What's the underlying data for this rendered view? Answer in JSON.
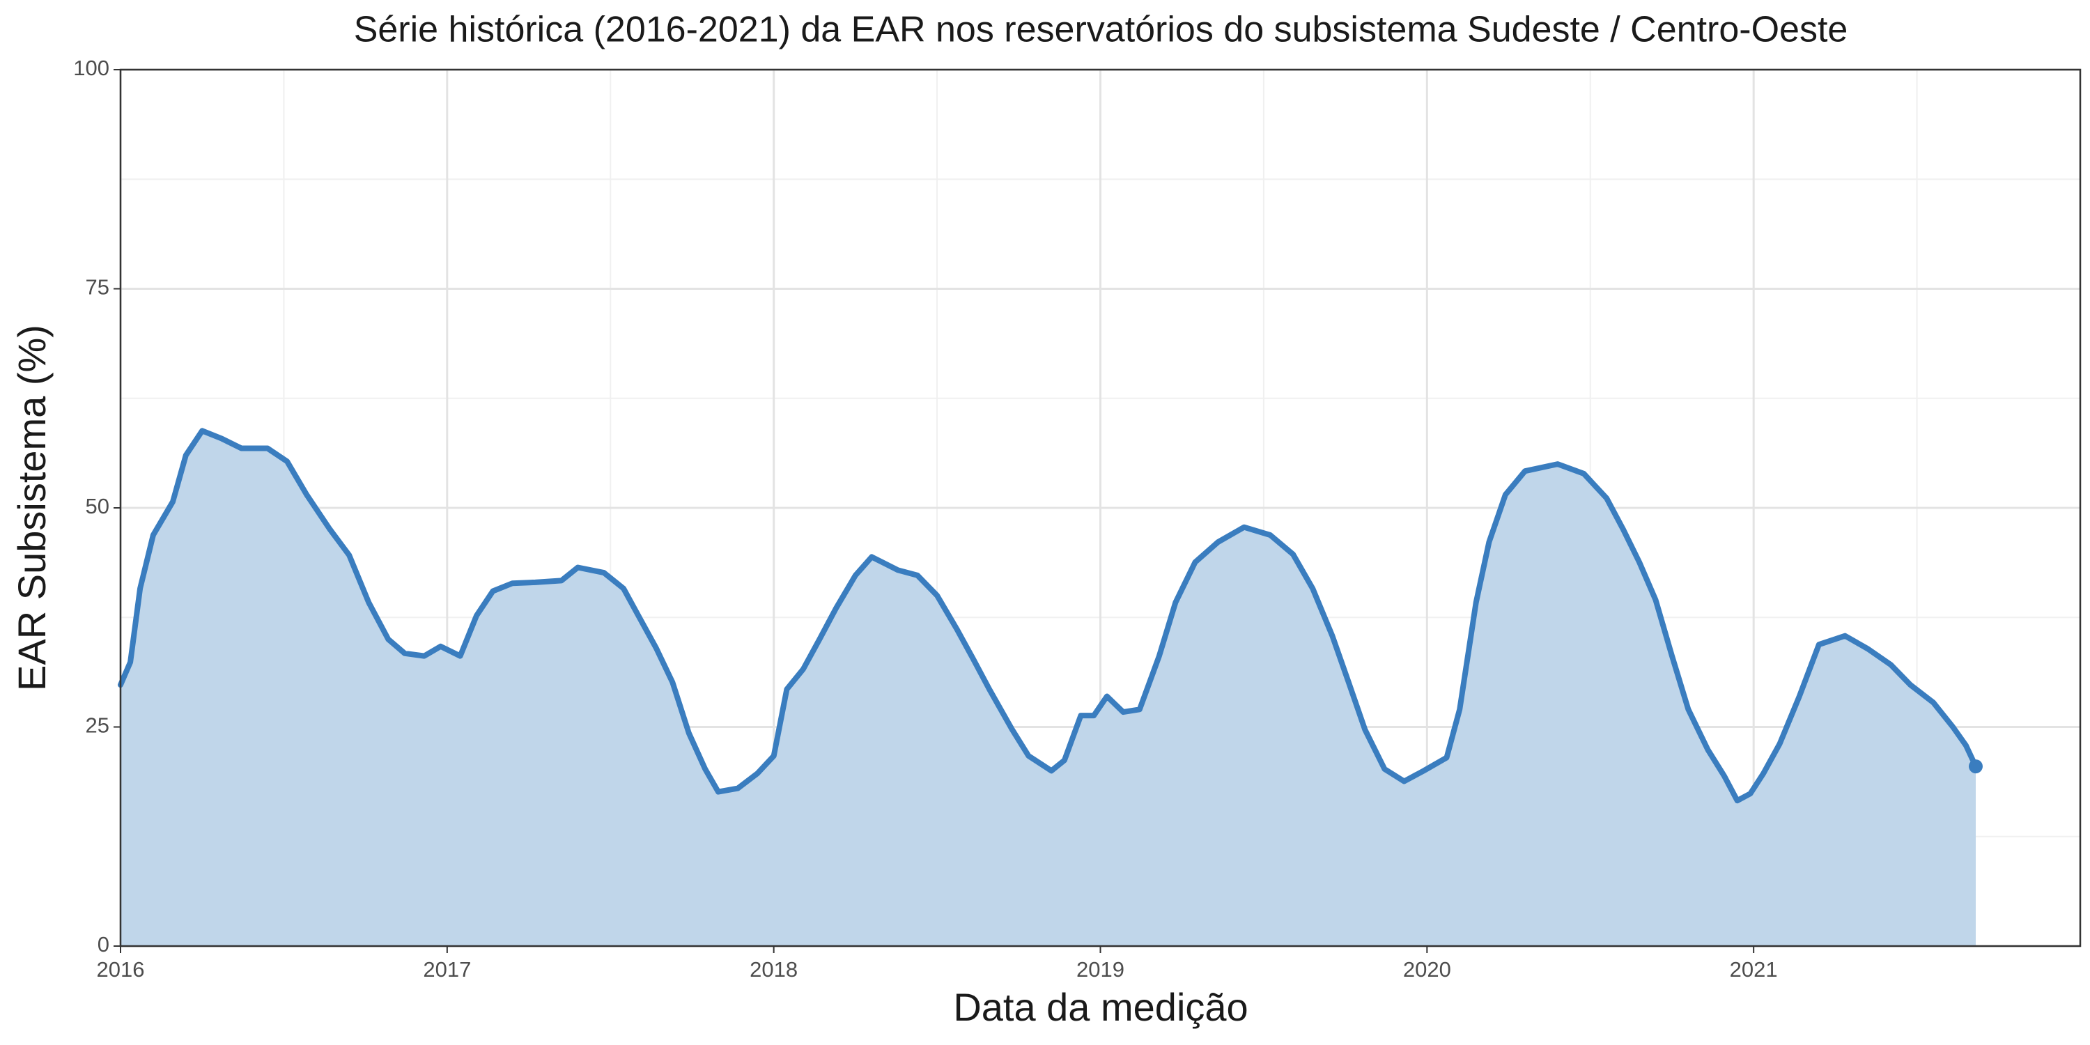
{
  "chart_data": {
    "type": "area",
    "title": "Série histórica (2016-2021) da EAR nos reservatórios do subsistema Sudeste / Centro-Oeste",
    "x_label": "Data da medição",
    "y_label": "EAR Subsistema (%)",
    "x": [
      2016.0,
      2016.03,
      2016.06,
      2016.1,
      2016.16,
      2016.2,
      2016.25,
      2016.31,
      2016.37,
      2016.45,
      2016.51,
      2016.57,
      2016.64,
      2016.7,
      2016.76,
      2016.82,
      2016.87,
      2016.93,
      2016.98,
      2017.04,
      2017.09,
      2017.14,
      2017.2,
      2017.27,
      2017.35,
      2017.4,
      2017.48,
      2017.54,
      2017.59,
      2017.64,
      2017.69,
      2017.74,
      2017.79,
      2017.83,
      2017.89,
      2017.95,
      2018.0,
      2018.04,
      2018.09,
      2018.14,
      2018.19,
      2018.25,
      2018.3,
      2018.38,
      2018.44,
      2018.5,
      2018.56,
      2018.61,
      2018.66,
      2018.73,
      2018.78,
      2018.85,
      2018.89,
      2018.94,
      2018.98,
      2019.02,
      2019.07,
      2019.12,
      2019.18,
      2019.23,
      2019.29,
      2019.36,
      2019.44,
      2019.52,
      2019.59,
      2019.65,
      2019.71,
      2019.76,
      2019.81,
      2019.87,
      2019.93,
      2019.99,
      2020.06,
      2020.1,
      2020.15,
      2020.19,
      2020.24,
      2020.3,
      2020.4,
      2020.48,
      2020.55,
      2020.6,
      2020.65,
      2020.7,
      2020.75,
      2020.8,
      2020.86,
      2020.91,
      2020.95,
      2020.99,
      2021.03,
      2021.08,
      2021.14,
      2021.2,
      2021.28,
      2021.35,
      2021.42,
      2021.48,
      2021.55,
      2021.61,
      2021.65,
      2021.68
    ],
    "values": [
      29.8,
      32.4,
      40.8,
      46.9,
      50.7,
      56.0,
      58.8,
      57.9,
      56.8,
      56.8,
      55.3,
      51.5,
      47.6,
      44.6,
      39.2,
      35.0,
      33.4,
      33.1,
      34.2,
      33.1,
      37.7,
      40.5,
      41.4,
      41.5,
      41.7,
      43.2,
      42.6,
      40.8,
      37.4,
      34.0,
      30.1,
      24.3,
      20.2,
      17.6,
      18.0,
      19.7,
      21.7,
      29.3,
      31.6,
      35.0,
      38.5,
      42.3,
      44.4,
      42.9,
      42.3,
      40.0,
      36.2,
      32.8,
      29.3,
      24.7,
      21.7,
      20.0,
      21.2,
      26.3,
      26.3,
      28.5,
      26.7,
      27.0,
      33.1,
      39.2,
      43.8,
      46.1,
      47.8,
      46.9,
      44.7,
      40.8,
      35.4,
      30.1,
      24.7,
      20.2,
      18.8,
      20.0,
      21.5,
      27.0,
      39.2,
      46.1,
      51.5,
      54.2,
      55.0,
      53.9,
      51.1,
      47.6,
      43.8,
      39.5,
      33.1,
      27.0,
      22.4,
      19.4,
      16.6,
      17.4,
      19.7,
      23.1,
      28.5,
      34.4,
      35.4,
      33.9,
      32.1,
      29.8,
      27.8,
      25.0,
      22.9,
      20.5
    ],
    "color": "#3a7dbf",
    "area_color": "#c0d6ea",
    "xlim": [
      2016,
      2022
    ],
    "xticks": [
      2016,
      2017,
      2018,
      2019,
      2020,
      2021
    ],
    "ylim": [
      0,
      100
    ],
    "yticks": [
      0,
      25,
      50,
      75,
      100
    ],
    "grid": true
  }
}
